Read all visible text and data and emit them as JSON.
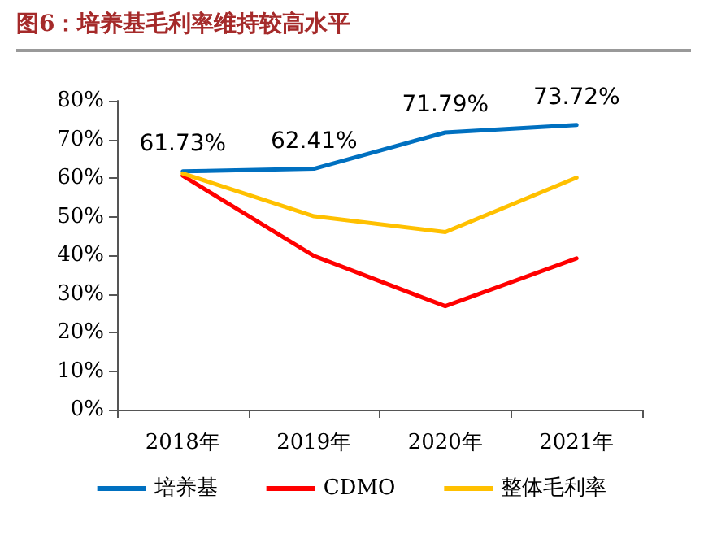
{
  "chart_data": {
    "type": "line",
    "title": "图6：培养基毛利率维持较高水平",
    "categories": [
      "2018年",
      "2019年",
      "2020年",
      "2021年"
    ],
    "series": [
      {
        "name": "培养基",
        "color": "#0070c0",
        "values": [
          61.73,
          62.41,
          71.79,
          73.72
        ],
        "value_labels": [
          "61.73%",
          "62.41%",
          "71.79%",
          "73.72%"
        ]
      },
      {
        "name": "CDMO",
        "color": "#ff0000",
        "values": [
          60.6,
          39.8,
          26.8,
          39.2
        ]
      },
      {
        "name": "整体毛利率",
        "color": "#ffc000",
        "values": [
          61.2,
          50.1,
          46.0,
          60.1
        ]
      }
    ],
    "ylim": [
      0,
      80
    ],
    "yticks": [
      {
        "value": 0,
        "label": "0%"
      },
      {
        "value": 10,
        "label": "10%"
      },
      {
        "value": 20,
        "label": "20%"
      },
      {
        "value": 30,
        "label": "30%"
      },
      {
        "value": 40,
        "label": "40%"
      },
      {
        "value": 50,
        "label": "50%"
      },
      {
        "value": 60,
        "label": "60%"
      },
      {
        "value": 70,
        "label": "70%"
      },
      {
        "value": 80,
        "label": "80%"
      }
    ],
    "grid": false,
    "legend": "bottom",
    "marker": "none",
    "line_style": "solid"
  }
}
